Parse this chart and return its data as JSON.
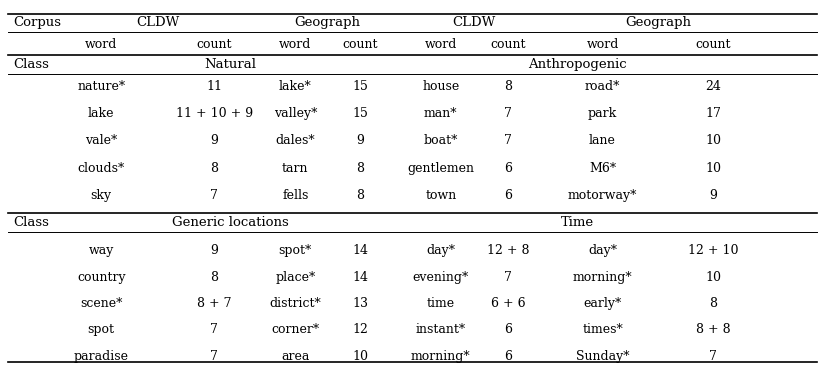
{
  "header_row1_labels": [
    "Corpus",
    "CLDW",
    "Geograph",
    "CLDW",
    "Geograph"
  ],
  "header_row2_labels": [
    "word",
    "count",
    "word",
    "count",
    "word",
    "count",
    "word",
    "count"
  ],
  "class_row1": [
    "Class",
    "Natural",
    "Anthropogenic"
  ],
  "natural_rows": [
    [
      "nature*",
      "11",
      "lake*",
      "15",
      "house",
      "8",
      "road*",
      "24"
    ],
    [
      "lake",
      "11 + 10 + 9",
      "valley*",
      "15",
      "man*",
      "7",
      "park",
      "17"
    ],
    [
      "vale*",
      "9",
      "dales*",
      "9",
      "boat*",
      "7",
      "lane",
      "10"
    ],
    [
      "clouds*",
      "8",
      "tarn",
      "8",
      "gentlemen",
      "6",
      "M6*",
      "10"
    ],
    [
      "sky",
      "7",
      "fells",
      "8",
      "town",
      "6",
      "motorway*",
      "9"
    ]
  ],
  "class_row2": [
    "Class",
    "Generic locations",
    "Time"
  ],
  "generic_rows": [
    [
      "way",
      "9",
      "spot*",
      "14",
      "day*",
      "12 + 8",
      "day*",
      "12 + 10"
    ],
    [
      "country",
      "8",
      "place*",
      "14",
      "evening*",
      "7",
      "morning*",
      "10"
    ],
    [
      "scene*",
      "8 + 7",
      "district*",
      "13",
      "time",
      "6 + 6",
      "early*",
      "8"
    ],
    [
      "spot",
      "7",
      "corner*",
      "12",
      "instant*",
      "6",
      "times*",
      "8 + 8"
    ],
    [
      "paradise",
      "7",
      "area",
      "10",
      "morning*",
      "6",
      "Sunday*",
      "7"
    ]
  ],
  "bg_color": "#ffffff",
  "text_color": "#000000",
  "fontsize": 9.0,
  "header_fontsize": 9.5
}
